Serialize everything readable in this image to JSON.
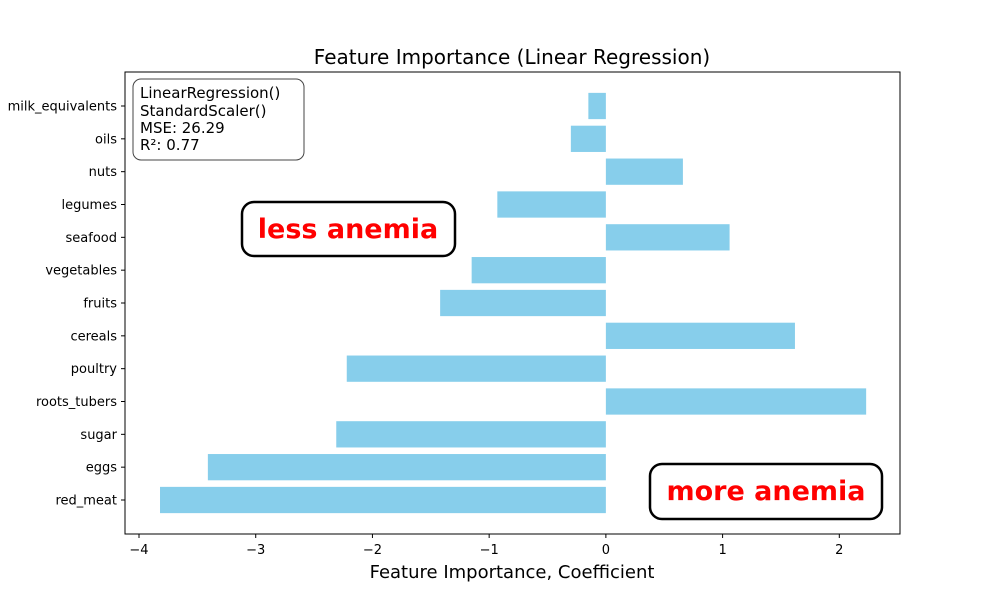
{
  "chart_data": {
    "type": "bar",
    "orientation": "horizontal",
    "title": "Feature Importance (Linear Regression)",
    "xlabel": "Feature Importance, Coefficient",
    "ylabel": "",
    "xlim": [
      -4.12,
      2.52
    ],
    "xticks": [
      -4,
      -3,
      -2,
      -1,
      0,
      1,
      2
    ],
    "xtick_labels": [
      "−4",
      "−3",
      "−2",
      "−1",
      "0",
      "1",
      "2"
    ],
    "grid": false,
    "bar_color": "#87CEEB",
    "categories": [
      "red_meat",
      "eggs",
      "sugar",
      "roots_tubers",
      "poultry",
      "cereals",
      "fruits",
      "vegetables",
      "seafood",
      "legumes",
      "nuts",
      "oils",
      "milk_equivalents"
    ],
    "values": [
      -3.82,
      -3.41,
      -2.31,
      2.23,
      -2.22,
      1.62,
      -1.42,
      -1.15,
      1.06,
      -0.93,
      0.66,
      -0.3,
      -0.15
    ],
    "info_box": {
      "lines": [
        "LinearRegression()",
        "StandardScaler()",
        "MSE: 26.29",
        "R²: 0.77"
      ]
    },
    "annotations": [
      {
        "text": "less anemia",
        "color": "#FF0000"
      },
      {
        "text": "more anemia",
        "color": "#FF0000"
      }
    ]
  }
}
